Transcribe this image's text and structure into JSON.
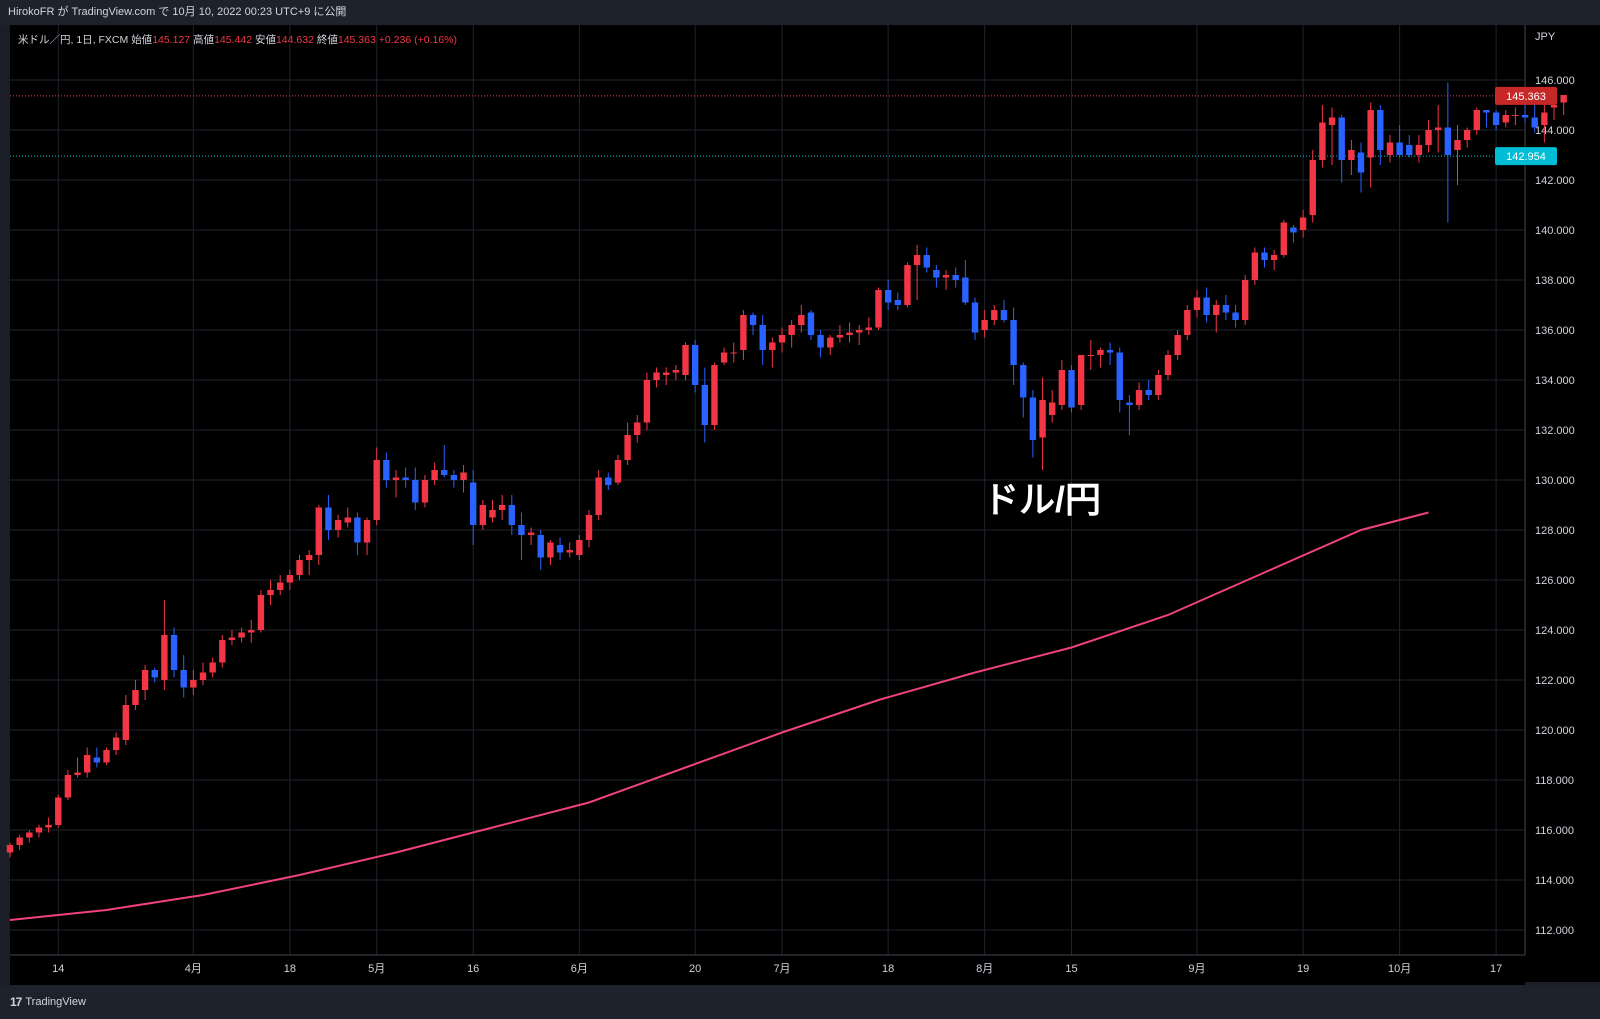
{
  "header": {
    "publish_line": "HirokoFR が TradingView.com で 10月 10, 2022 00:23 UTC+9 に公開"
  },
  "legend": {
    "symbol": "米ドル／円, 1日, FXCM",
    "open_label": "始値",
    "open": "145.127",
    "high_label": "高値",
    "high": "145.442",
    "low_label": "安値",
    "low": "144.632",
    "close_label": "終値",
    "close": "145.363",
    "change": "+0.236 (+0.16%)"
  },
  "currency_label": "JPY",
  "footer": {
    "logo_text": "TradingView",
    "logo_mark": "17"
  },
  "colors": {
    "up": "#f23645",
    "down": "#2962ff",
    "ma": "#f0427a",
    "price_tag": "#c62828",
    "hline_tag": "#00bcd4"
  },
  "chart_data": {
    "type": "candlestick",
    "annotation": "ドル/円",
    "ylim": [
      111,
      148.2
    ],
    "yticks": [
      112,
      114,
      116,
      118,
      120,
      122,
      124,
      126,
      128,
      130,
      132,
      134,
      136,
      138,
      140,
      142,
      144,
      146
    ],
    "ytick_labels": [
      "112.000",
      "114.000",
      "116.000",
      "118.000",
      "120.000",
      "122.000",
      "124.000",
      "126.000",
      "128.000",
      "130.000",
      "132.000",
      "134.000",
      "136.000",
      "138.000",
      "140.000",
      "142.000",
      "144.000",
      "146.000"
    ],
    "xticks": [
      {
        "label": "14",
        "index": 5
      },
      {
        "label": "4月",
        "index": 19
      },
      {
        "label": "18",
        "index": 29
      },
      {
        "label": "5月",
        "index": 38
      },
      {
        "label": "16",
        "index": 48
      },
      {
        "label": "6月",
        "index": 59
      },
      {
        "label": "20",
        "index": 71
      },
      {
        "label": "7月",
        "index": 80
      },
      {
        "label": "18",
        "index": 91
      },
      {
        "label": "8月",
        "index": 101
      },
      {
        "label": "15",
        "index": 110
      },
      {
        "label": "9月",
        "index": 123
      },
      {
        "label": "19",
        "index": 134
      },
      {
        "label": "10月",
        "index": 144
      },
      {
        "label": "17",
        "index": 154
      }
    ],
    "last_price": {
      "value": 145.363,
      "label": "145.363"
    },
    "hline": {
      "value": 142.954,
      "label": "142.954"
    },
    "ma_line": {
      "x": [
        0,
        10,
        20,
        30,
        40,
        50,
        60,
        70,
        80,
        90,
        100,
        110,
        120,
        130,
        140,
        147
      ],
      "y": [
        112.4,
        112.8,
        113.4,
        114.2,
        115.1,
        116.1,
        117.1,
        118.5,
        119.9,
        121.2,
        122.3,
        123.3,
        124.6,
        126.3,
        128.0,
        128.7
      ]
    },
    "ohlc": [
      [
        115.1,
        115.5,
        114.9,
        115.4
      ],
      [
        115.4,
        115.8,
        115.2,
        115.7
      ],
      [
        115.7,
        116.0,
        115.5,
        115.9
      ],
      [
        115.9,
        116.2,
        115.7,
        116.1
      ],
      [
        116.1,
        116.5,
        115.9,
        116.2
      ],
      [
        116.2,
        117.4,
        116.1,
        117.3
      ],
      [
        117.3,
        118.4,
        117.2,
        118.2
      ],
      [
        118.2,
        118.9,
        118.1,
        118.3
      ],
      [
        118.3,
        119.3,
        118.1,
        119.0
      ],
      [
        118.9,
        119.3,
        118.5,
        118.7
      ],
      [
        118.7,
        119.3,
        118.6,
        119.2
      ],
      [
        119.2,
        119.9,
        119.0,
        119.7
      ],
      [
        119.6,
        121.4,
        119.4,
        121.0
      ],
      [
        121.0,
        122.0,
        120.8,
        121.6
      ],
      [
        121.6,
        122.6,
        121.2,
        122.4
      ],
      [
        122.4,
        122.5,
        121.9,
        122.1
      ],
      [
        122.0,
        125.2,
        121.6,
        123.8
      ],
      [
        123.8,
        124.1,
        122.1,
        122.4
      ],
      [
        122.4,
        123.0,
        121.3,
        121.7
      ],
      [
        121.7,
        122.4,
        121.4,
        122.0
      ],
      [
        122.0,
        122.7,
        121.8,
        122.3
      ],
      [
        122.3,
        122.9,
        122.1,
        122.7
      ],
      [
        122.7,
        123.8,
        122.5,
        123.6
      ],
      [
        123.6,
        124.0,
        123.4,
        123.7
      ],
      [
        123.7,
        124.1,
        123.5,
        123.9
      ],
      [
        123.9,
        124.4,
        123.5,
        124.0
      ],
      [
        124.0,
        125.6,
        123.9,
        125.4
      ],
      [
        125.4,
        126.0,
        125.0,
        125.6
      ],
      [
        125.6,
        126.2,
        125.4,
        125.9
      ],
      [
        125.9,
        126.4,
        125.6,
        126.2
      ],
      [
        126.2,
        127.0,
        126.0,
        126.8
      ],
      [
        126.8,
        127.2,
        126.2,
        127.0
      ],
      [
        127.0,
        129.0,
        126.6,
        128.9
      ],
      [
        128.9,
        129.4,
        127.6,
        128.0
      ],
      [
        128.0,
        128.6,
        127.7,
        128.4
      ],
      [
        128.3,
        128.9,
        128.1,
        128.5
      ],
      [
        128.5,
        128.7,
        127.0,
        127.5
      ],
      [
        127.5,
        128.5,
        127.0,
        128.4
      ],
      [
        128.4,
        131.3,
        128.2,
        130.8
      ],
      [
        130.8,
        131.1,
        129.7,
        130.0
      ],
      [
        130.0,
        130.4,
        129.3,
        130.1
      ],
      [
        130.1,
        130.5,
        129.7,
        130.0
      ],
      [
        130.0,
        130.5,
        128.8,
        129.1
      ],
      [
        129.1,
        130.2,
        128.9,
        130.0
      ],
      [
        130.0,
        130.7,
        129.8,
        130.4
      ],
      [
        130.4,
        131.4,
        130.1,
        130.2
      ],
      [
        130.2,
        130.4,
        129.7,
        130.0
      ],
      [
        130.0,
        130.6,
        129.5,
        130.3
      ],
      [
        129.9,
        130.4,
        127.4,
        128.2
      ],
      [
        128.2,
        129.2,
        128.0,
        129.0
      ],
      [
        128.5,
        129.2,
        128.3,
        128.8
      ],
      [
        128.8,
        129.4,
        128.4,
        129.0
      ],
      [
        129.0,
        129.4,
        127.8,
        128.2
      ],
      [
        128.2,
        128.7,
        126.8,
        127.8
      ],
      [
        127.8,
        128.1,
        127.4,
        127.9
      ],
      [
        127.8,
        128.0,
        126.4,
        126.9
      ],
      [
        126.9,
        127.6,
        126.6,
        127.5
      ],
      [
        127.4,
        127.7,
        126.8,
        127.1
      ],
      [
        127.1,
        127.5,
        126.9,
        127.2
      ],
      [
        127.0,
        127.8,
        126.8,
        127.6
      ],
      [
        127.6,
        128.8,
        127.3,
        128.6
      ],
      [
        128.6,
        130.4,
        128.4,
        130.1
      ],
      [
        130.1,
        130.3,
        129.6,
        129.8
      ],
      [
        129.9,
        131.0,
        129.8,
        130.8
      ],
      [
        130.8,
        132.3,
        130.6,
        131.8
      ],
      [
        131.8,
        132.6,
        131.5,
        132.3
      ],
      [
        132.3,
        134.3,
        132.0,
        134.0
      ],
      [
        134.0,
        134.5,
        133.7,
        134.3
      ],
      [
        134.2,
        134.5,
        133.8,
        134.3
      ],
      [
        134.3,
        134.6,
        134.0,
        134.4
      ],
      [
        134.2,
        135.5,
        134.0,
        135.4
      ],
      [
        135.4,
        135.6,
        133.5,
        133.8
      ],
      [
        133.8,
        134.5,
        131.5,
        132.2
      ],
      [
        132.2,
        134.7,
        132.0,
        134.6
      ],
      [
        134.7,
        135.3,
        134.6,
        135.1
      ],
      [
        135.1,
        135.5,
        134.7,
        135.1
      ],
      [
        135.2,
        136.8,
        134.8,
        136.6
      ],
      [
        136.6,
        136.7,
        135.8,
        136.2
      ],
      [
        136.2,
        136.6,
        134.6,
        135.2
      ],
      [
        135.2,
        135.7,
        134.5,
        135.5
      ],
      [
        135.5,
        136.1,
        135.1,
        135.8
      ],
      [
        135.8,
        136.4,
        135.3,
        136.2
      ],
      [
        136.2,
        137.0,
        135.9,
        136.6
      ],
      [
        136.7,
        136.8,
        135.6,
        135.8
      ],
      [
        135.8,
        136.0,
        134.9,
        135.3
      ],
      [
        135.3,
        135.8,
        135.0,
        135.7
      ],
      [
        135.7,
        136.2,
        135.5,
        135.8
      ],
      [
        135.8,
        136.3,
        135.5,
        135.9
      ],
      [
        135.9,
        136.2,
        135.4,
        136.0
      ],
      [
        136.0,
        136.5,
        135.8,
        136.1
      ],
      [
        136.1,
        137.7,
        136.0,
        137.6
      ],
      [
        137.6,
        138.0,
        136.8,
        137.1
      ],
      [
        137.2,
        137.5,
        136.8,
        137.0
      ],
      [
        137.0,
        138.7,
        136.9,
        138.6
      ],
      [
        138.6,
        139.4,
        137.2,
        139.0
      ],
      [
        139.0,
        139.3,
        138.3,
        138.5
      ],
      [
        138.4,
        138.6,
        137.7,
        138.1
      ],
      [
        138.1,
        138.4,
        137.6,
        138.2
      ],
      [
        138.2,
        138.5,
        137.7,
        138.0
      ],
      [
        138.1,
        138.8,
        137.0,
        137.1
      ],
      [
        137.1,
        137.3,
        135.6,
        135.9
      ],
      [
        136.0,
        136.8,
        135.7,
        136.4
      ],
      [
        136.4,
        137.0,
        136.2,
        136.8
      ],
      [
        136.8,
        137.2,
        136.3,
        136.4
      ],
      [
        136.4,
        136.9,
        133.8,
        134.6
      ],
      [
        134.6,
        134.7,
        132.5,
        133.3
      ],
      [
        133.3,
        133.6,
        130.9,
        131.6
      ],
      [
        131.7,
        134.1,
        130.4,
        133.2
      ],
      [
        132.6,
        133.6,
        132.3,
        133.1
      ],
      [
        133.0,
        134.8,
        132.8,
        134.4
      ],
      [
        134.4,
        134.6,
        132.7,
        132.9
      ],
      [
        133.0,
        135.0,
        132.8,
        135.0
      ],
      [
        135.0,
        135.6,
        134.4,
        135.0
      ],
      [
        135.0,
        135.3,
        134.5,
        135.2
      ],
      [
        135.2,
        135.5,
        134.6,
        135.1
      ],
      [
        135.1,
        135.3,
        132.7,
        133.2
      ],
      [
        133.1,
        133.4,
        131.8,
        133.0
      ],
      [
        133.0,
        133.9,
        132.8,
        133.6
      ],
      [
        133.6,
        134.0,
        133.2,
        133.4
      ],
      [
        133.4,
        134.4,
        133.2,
        134.2
      ],
      [
        134.2,
        135.2,
        134.0,
        135.0
      ],
      [
        135.0,
        136.0,
        134.8,
        135.8
      ],
      [
        135.8,
        137.0,
        135.6,
        136.8
      ],
      [
        136.8,
        137.6,
        136.5,
        137.3
      ],
      [
        137.3,
        137.7,
        136.3,
        136.6
      ],
      [
        136.6,
        137.2,
        135.9,
        137.0
      ],
      [
        137.0,
        137.4,
        136.4,
        136.7
      ],
      [
        136.7,
        137.0,
        136.1,
        136.4
      ],
      [
        136.4,
        138.2,
        136.2,
        138.0
      ],
      [
        138.0,
        139.3,
        137.8,
        139.1
      ],
      [
        139.1,
        139.3,
        138.5,
        138.8
      ],
      [
        138.8,
        139.2,
        138.4,
        139.0
      ],
      [
        139.0,
        140.4,
        138.9,
        140.3
      ],
      [
        140.1,
        140.2,
        139.5,
        139.9
      ],
      [
        140.0,
        140.8,
        139.7,
        140.5
      ],
      [
        140.6,
        143.2,
        140.3,
        142.8
      ],
      [
        142.8,
        145.0,
        142.5,
        144.3
      ],
      [
        144.2,
        144.9,
        142.6,
        144.5
      ],
      [
        144.5,
        144.6,
        141.9,
        142.8
      ],
      [
        142.8,
        143.6,
        142.2,
        143.2
      ],
      [
        143.1,
        143.5,
        141.5,
        142.3
      ],
      [
        142.9,
        145.1,
        141.7,
        144.8
      ],
      [
        144.8,
        145.0,
        142.6,
        143.2
      ],
      [
        143.0,
        143.8,
        142.7,
        143.5
      ],
      [
        143.5,
        144.2,
        142.9,
        143.0
      ],
      [
        143.4,
        143.8,
        142.9,
        143.0
      ],
      [
        143.0,
        143.8,
        142.7,
        143.4
      ],
      [
        143.4,
        144.4,
        143.1,
        144.0
      ],
      [
        144.0,
        145.0,
        143.1,
        144.1
      ],
      [
        144.1,
        145.9,
        140.3,
        143.0
      ],
      [
        143.2,
        144.2,
        141.8,
        143.6
      ],
      [
        143.6,
        144.1,
        143.3,
        144.0
      ],
      [
        144.0,
        144.9,
        143.8,
        144.8
      ],
      [
        144.8,
        144.8,
        144.1,
        144.7
      ],
      [
        144.7,
        144.8,
        144.0,
        144.2
      ],
      [
        144.3,
        144.8,
        144.1,
        144.6
      ],
      [
        144.6,
        144.9,
        144.2,
        144.6
      ],
      [
        144.6,
        145.3,
        144.3,
        144.5
      ],
      [
        144.5,
        145.0,
        143.9,
        144.1
      ],
      [
        144.2,
        145.0,
        143.5,
        144.7
      ],
      [
        144.9,
        145.2,
        144.4,
        145.0
      ],
      [
        145.1,
        145.4,
        144.6,
        145.4
      ]
    ]
  }
}
